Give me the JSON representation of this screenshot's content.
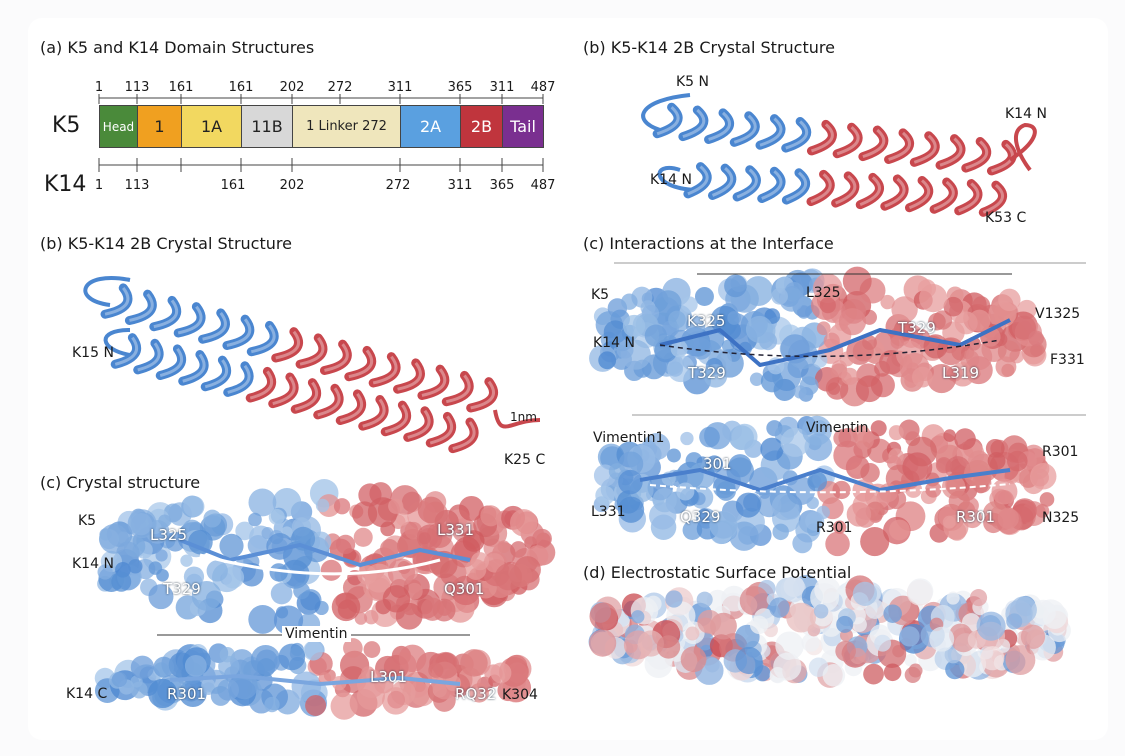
{
  "panel_a": {
    "title": "(a) K5 and K14 Domain Structures",
    "k5_label": "K5",
    "k14_label": "K14",
    "k5_ticks": [
      "1",
      "113",
      "161",
      "161",
      "202",
      "272",
      "311",
      "365",
      "311",
      "487"
    ],
    "k14_ticks": [
      "1",
      "113",
      "161",
      "202",
      "272",
      "311",
      "365",
      "487"
    ],
    "segments": [
      {
        "label": "Head",
        "color": "#4a8a3a"
      },
      {
        "label": "1",
        "color": "#f0a020"
      },
      {
        "label": "1A",
        "color": "#f2d860"
      },
      {
        "label": "11B",
        "color": "#d8d8d8"
      },
      {
        "label": "1 Linker  272",
        "color": "#efe6bc"
      },
      {
        "label": "2A",
        "color": "#5aa0e0"
      },
      {
        "label": "2B",
        "color": "#c0353d"
      },
      {
        "label": "Tail",
        "color": "#7a2f90"
      }
    ]
  },
  "panel_b_top": {
    "title": "(b) K5-K14 2B Crystal Structure",
    "labels": [
      "K5 N",
      "K14 N",
      "K14 N",
      "K53 C"
    ]
  },
  "panel_b_left": {
    "title": "(b) K5-K14 2B Crystal Structure",
    "labels": [
      "K15 N",
      "1nm",
      "K25 C"
    ]
  },
  "panel_c_left": {
    "title": "(c)  Crystal structure",
    "labels": [
      "K5",
      "K14 N",
      "L325",
      "T329",
      "L331",
      "Q301"
    ],
    "divider_label": "Vimentin",
    "lower_labels": [
      "K14 C",
      "R301",
      "L301",
      "RQ32",
      "K304"
    ]
  },
  "panel_c_right": {
    "title": "(c)  Interactions at the Interface",
    "labels": [
      "K5",
      "K14 N",
      "L325",
      "K325",
      "T329",
      "T329",
      "L319",
      "V1325",
      "F331"
    ],
    "lower_labels": [
      "Vimentin1",
      "Vimentin",
      "301",
      "Q329",
      "R301",
      "R301",
      "L331",
      "R301",
      "N325"
    ]
  },
  "panel_d": {
    "title": "(d)  Electrostatic Surface Potential"
  },
  "colors": {
    "blue": "#4a86d0",
    "red": "#c8474d",
    "light_blue": "#a9c8ea",
    "light_red": "#e8a0a0"
  }
}
